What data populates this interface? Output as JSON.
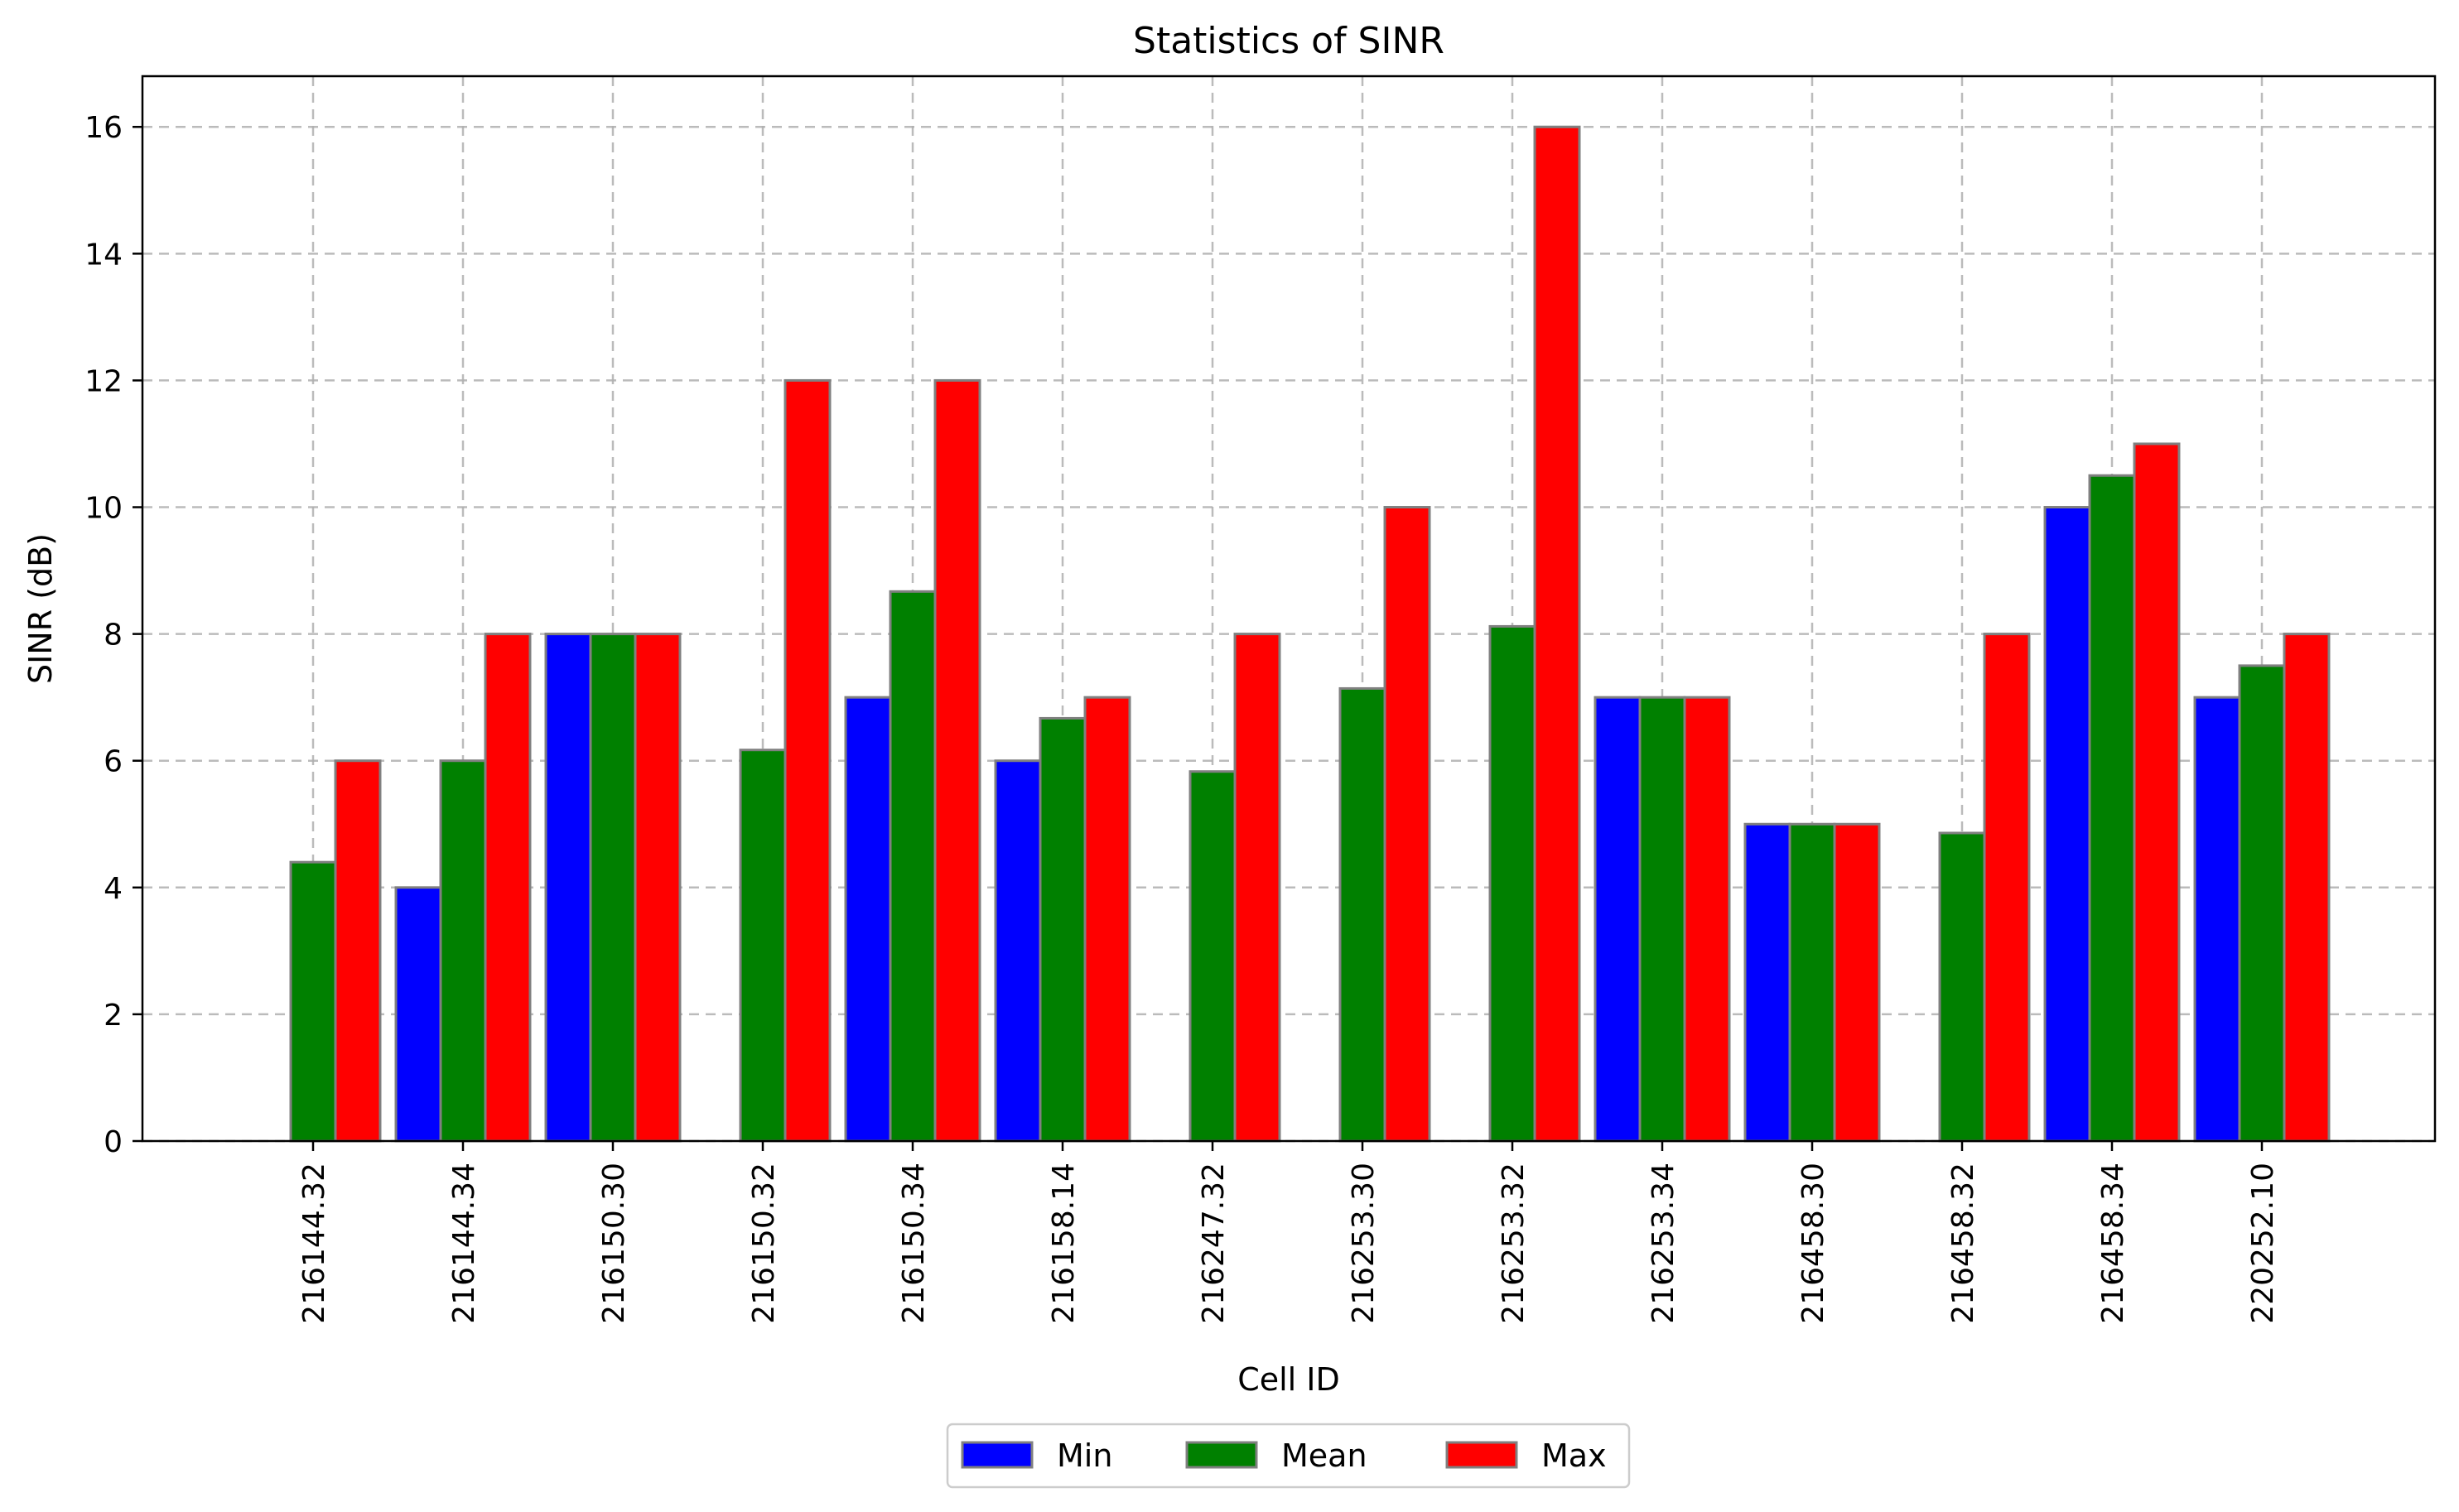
{
  "chart_data": {
    "type": "bar",
    "title": "Statistics of SINR",
    "xlabel": "Cell ID",
    "ylabel": "SINR (dB)",
    "categories": [
      "216144.32",
      "216144.34",
      "216150.30",
      "216150.32",
      "216150.34",
      "216158.14",
      "216247.32",
      "216253.30",
      "216253.32",
      "216253.34",
      "216458.30",
      "216458.32",
      "216458.34",
      "220252.10"
    ],
    "series": [
      {
        "name": "Min",
        "color": "#0000ff",
        "values": [
          0,
          4,
          8,
          0,
          7,
          6,
          0,
          0,
          0,
          7,
          5,
          0,
          10,
          7
        ]
      },
      {
        "name": "Mean",
        "color": "#008000",
        "values": [
          4.4,
          6,
          8,
          6.17,
          8.67,
          6.67,
          5.83,
          7.14,
          8.12,
          7,
          5,
          4.86,
          10.5,
          7.5
        ]
      },
      {
        "name": "Max",
        "color": "#ff0000",
        "values": [
          6,
          8,
          8,
          12,
          12,
          7,
          8,
          10,
          16,
          7,
          5,
          8,
          11,
          8
        ]
      }
    ],
    "ylim": [
      0,
      16.8
    ],
    "yticks": [
      "0",
      "2",
      "4",
      "6",
      "8",
      "10",
      "12",
      "14",
      "16"
    ],
    "grid": true,
    "legend_position": "bottom-center",
    "bar_edge_color": "#808080"
  }
}
